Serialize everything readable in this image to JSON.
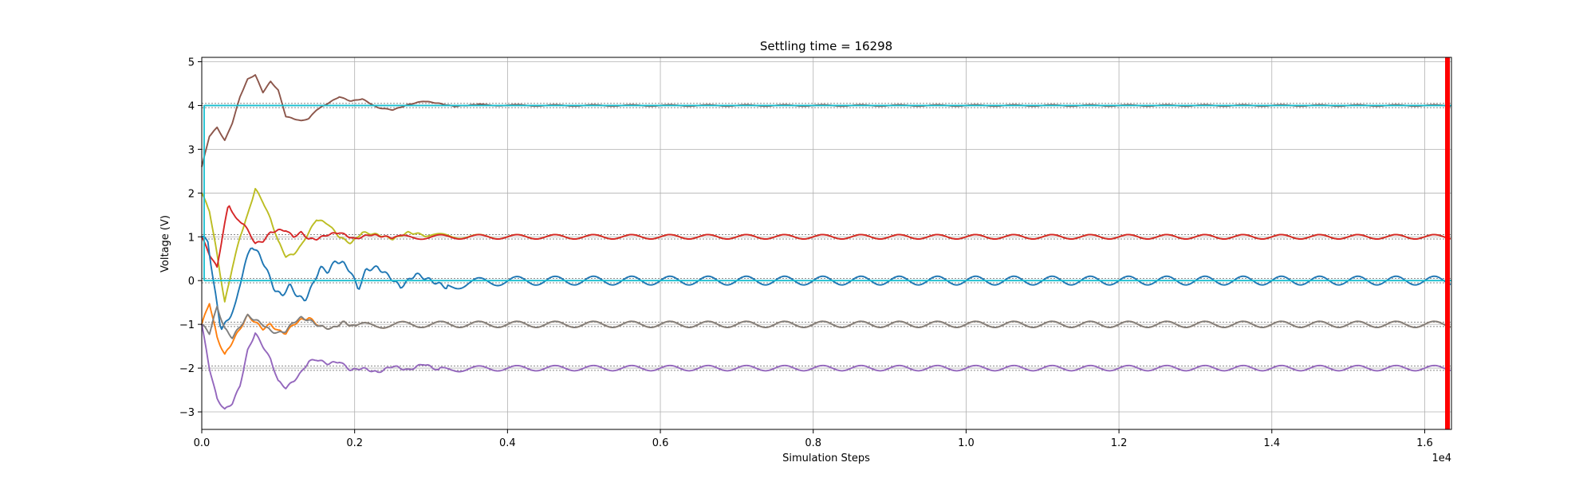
{
  "chart_data": {
    "type": "line",
    "title": "Settling time = 16298",
    "xlabel": "Simulation Steps",
    "ylabel": "Voltage (V)",
    "x_multiplier_label": "1e4",
    "xlim": [
      0,
      16350
    ],
    "ylim": [
      -3.4,
      5.1
    ],
    "x_ticks": [
      0,
      2000,
      4000,
      6000,
      8000,
      10000,
      12000,
      14000,
      16000
    ],
    "x_tick_labels": [
      "0.0",
      "0.2",
      "0.4",
      "0.6",
      "0.8",
      "1.0",
      "1.2",
      "1.4",
      "1.6"
    ],
    "y_ticks": [
      -3,
      -2,
      -1,
      0,
      1,
      2,
      3,
      4,
      5
    ],
    "y_tick_labels": [
      "−3",
      "−2",
      "−1",
      "0",
      "1",
      "2",
      "3",
      "4",
      "5"
    ],
    "grid": true,
    "settling_time": 16298,
    "settling_marker_color": "#ff0000",
    "tolerance_band_color": "#888888",
    "reference_color": "#17becf",
    "series": [
      {
        "color": "#8c564b",
        "target": 4.0,
        "start": 2.6,
        "transient": [
          [
            0,
            2.6
          ],
          [
            100,
            3.3
          ],
          [
            200,
            3.5
          ],
          [
            300,
            3.2
          ],
          [
            400,
            3.6
          ],
          [
            500,
            4.2
          ],
          [
            600,
            4.6
          ],
          [
            700,
            4.7
          ],
          [
            800,
            4.3
          ],
          [
            900,
            4.55
          ],
          [
            1000,
            4.35
          ],
          [
            1100,
            3.75
          ],
          [
            1200,
            3.7
          ],
          [
            1300,
            3.65
          ],
          [
            1400,
            3.7
          ],
          [
            1500,
            3.9
          ],
          [
            1650,
            4.05
          ],
          [
            1800,
            4.2
          ],
          [
            1950,
            4.1
          ],
          [
            2100,
            4.15
          ],
          [
            2300,
            3.95
          ],
          [
            2500,
            3.9
          ],
          [
            2700,
            4.02
          ],
          [
            2900,
            4.1
          ],
          [
            3100,
            4.05
          ],
          [
            3300,
            3.98
          ],
          [
            3600,
            4.02
          ]
        ],
        "ripple": 0.015,
        "period": 500
      },
      {
        "color": "#bcbd22",
        "target": 1.0,
        "start": 2.0,
        "transient": [
          [
            0,
            2.0
          ],
          [
            100,
            1.6
          ],
          [
            200,
            0.6
          ],
          [
            300,
            -0.5
          ],
          [
            400,
            0.3
          ],
          [
            500,
            1.0
          ],
          [
            600,
            1.5
          ],
          [
            700,
            2.1
          ],
          [
            800,
            1.8
          ],
          [
            900,
            1.4
          ],
          [
            1000,
            0.9
          ],
          [
            1100,
            0.55
          ],
          [
            1200,
            0.6
          ],
          [
            1300,
            0.8
          ],
          [
            1400,
            1.1
          ],
          [
            1500,
            1.4
          ],
          [
            1650,
            1.3
          ],
          [
            1800,
            1.0
          ],
          [
            1950,
            0.85
          ],
          [
            2100,
            1.1
          ],
          [
            2300,
            1.05
          ],
          [
            2500,
            0.95
          ],
          [
            2700,
            1.1
          ],
          [
            2900,
            1.05
          ]
        ],
        "ripple": 0.05,
        "period": 500
      },
      {
        "color": "#d62728",
        "target": 1.0,
        "start": 1.0,
        "transient": [
          [
            0,
            1.0
          ],
          [
            100,
            0.6
          ],
          [
            200,
            0.3
          ],
          [
            300,
            1.3
          ],
          [
            350,
            1.75
          ],
          [
            450,
            1.4
          ],
          [
            550,
            1.3
          ],
          [
            700,
            0.85
          ],
          [
            800,
            0.9
          ],
          [
            900,
            1.1
          ],
          [
            1000,
            1.15
          ],
          [
            1100,
            1.15
          ],
          [
            1200,
            1.0
          ],
          [
            1300,
            1.1
          ],
          [
            1400,
            0.95
          ],
          [
            1500,
            0.95
          ],
          [
            1650,
            1.05
          ],
          [
            1800,
            1.1
          ],
          [
            2000,
            0.95
          ],
          [
            2200,
            1.05
          ],
          [
            2500,
            0.98
          ]
        ],
        "ripple": 0.05,
        "period": 500
      },
      {
        "color": "#1f77b4",
        "target": 0.0,
        "start": 1.0,
        "transient": [
          [
            0,
            1.0
          ],
          [
            80,
            0.9
          ],
          [
            150,
            0.0
          ],
          [
            250,
            -1.1
          ],
          [
            350,
            -0.9
          ],
          [
            450,
            -0.5
          ],
          [
            550,
            0.3
          ],
          [
            650,
            0.8
          ],
          [
            750,
            0.6
          ],
          [
            850,
            0.25
          ],
          [
            950,
            -0.2
          ],
          [
            1050,
            -0.35
          ],
          [
            1150,
            -0.1
          ],
          [
            1250,
            -0.35
          ],
          [
            1350,
            -0.45
          ],
          [
            1450,
            -0.1
          ],
          [
            1550,
            0.3
          ],
          [
            1650,
            0.2
          ],
          [
            1750,
            0.45
          ],
          [
            1850,
            0.4
          ],
          [
            1950,
            0.2
          ],
          [
            2050,
            -0.2
          ],
          [
            2150,
            0.25
          ],
          [
            2300,
            0.3
          ],
          [
            2450,
            0.1
          ],
          [
            2600,
            -0.15
          ],
          [
            2800,
            0.15
          ],
          [
            3000,
            0.0
          ],
          [
            3200,
            -0.15
          ]
        ],
        "ripple": 0.1,
        "period": 500
      },
      {
        "color": "#ff7f0e",
        "target": -1.0,
        "start": -1.0,
        "transient": [
          [
            0,
            -1.0
          ],
          [
            100,
            -0.5
          ],
          [
            200,
            -1.3
          ],
          [
            300,
            -1.7
          ],
          [
            400,
            -1.4
          ],
          [
            500,
            -1.1
          ],
          [
            600,
            -0.8
          ],
          [
            700,
            -0.95
          ],
          [
            800,
            -1.1
          ],
          [
            900,
            -1.0
          ],
          [
            1000,
            -1.15
          ],
          [
            1100,
            -1.2
          ],
          [
            1200,
            -1.0
          ],
          [
            1300,
            -0.9
          ],
          [
            1400,
            -0.85
          ],
          [
            1550,
            -1.05
          ],
          [
            1700,
            -1.1
          ],
          [
            1850,
            -0.95
          ],
          [
            2000,
            -1.05
          ]
        ],
        "ripple": 0.07,
        "period": 500
      },
      {
        "color": "#7f7f7f",
        "target": -1.0,
        "start": -1.0,
        "transient": [
          [
            0,
            -1.0
          ],
          [
            100,
            -1.2
          ],
          [
            200,
            -0.6
          ],
          [
            300,
            -1.1
          ],
          [
            400,
            -1.3
          ],
          [
            500,
            -1.05
          ],
          [
            600,
            -0.8
          ],
          [
            700,
            -0.9
          ],
          [
            800,
            -1.0
          ],
          [
            900,
            -1.15
          ],
          [
            1000,
            -1.2
          ],
          [
            1100,
            -1.15
          ],
          [
            1200,
            -0.95
          ],
          [
            1300,
            -0.85
          ],
          [
            1400,
            -0.9
          ],
          [
            1550,
            -1.05
          ],
          [
            1700,
            -1.1
          ],
          [
            1850,
            -0.95
          ],
          [
            2000,
            -1.05
          ]
        ],
        "ripple": 0.07,
        "period": 500
      },
      {
        "color": "#9467bd",
        "target": -2.0,
        "start": -1.0,
        "transient": [
          [
            0,
            -1.0
          ],
          [
            100,
            -2.0
          ],
          [
            200,
            -2.7
          ],
          [
            300,
            -2.95
          ],
          [
            400,
            -2.8
          ],
          [
            500,
            -2.4
          ],
          [
            600,
            -1.6
          ],
          [
            700,
            -1.2
          ],
          [
            800,
            -1.5
          ],
          [
            900,
            -1.8
          ],
          [
            1000,
            -2.3
          ],
          [
            1100,
            -2.45
          ],
          [
            1200,
            -2.3
          ],
          [
            1300,
            -2.1
          ],
          [
            1400,
            -1.85
          ],
          [
            1500,
            -1.8
          ],
          [
            1650,
            -1.9
          ],
          [
            1800,
            -1.85
          ],
          [
            1950,
            -2.05
          ],
          [
            2100,
            -2.0
          ],
          [
            2300,
            -2.1
          ],
          [
            2500,
            -1.95
          ],
          [
            2700,
            -2.05
          ],
          [
            2900,
            -1.9
          ],
          [
            3100,
            -2.05
          ]
        ],
        "ripple": 0.06,
        "period": 500
      }
    ],
    "references": [
      {
        "level": 4.0,
        "start": 0.0
      },
      {
        "level": 0.0,
        "start": 0.0
      }
    ],
    "tolerance_bands": [
      {
        "level": 4.0,
        "half_width": 0.05
      },
      {
        "level": 1.0,
        "half_width": 0.05
      },
      {
        "level": 0.0,
        "half_width": 0.05
      },
      {
        "level": -1.0,
        "half_width": 0.05
      },
      {
        "level": -2.0,
        "half_width": 0.05
      }
    ]
  }
}
